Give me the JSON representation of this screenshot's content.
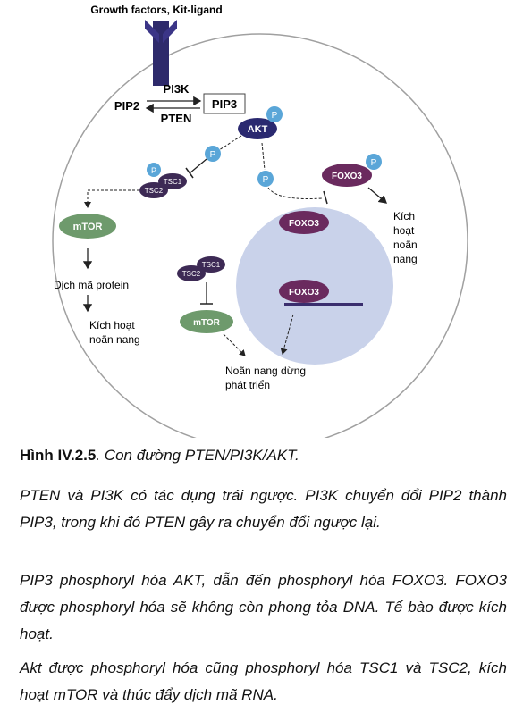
{
  "diagram": {
    "receptor_label": "Growth factors, Kit-ligand",
    "pi3k": "PI3K",
    "pip2": "PIP2",
    "pip3": "PIP3",
    "pten": "PTEN",
    "akt": "AKT",
    "p": "P",
    "tsc1": "TSC1",
    "tsc2": "TSC2",
    "mtor": "mTOR",
    "foxo3": "FOXO3",
    "kich_hoat_noan_nang_right": [
      "Kích",
      "hoạt",
      "noãn",
      "nang"
    ],
    "dich_ma_protein": "Dịch mã protein",
    "kich_hoat_noan_nang_left": [
      "Kích hoạt",
      "noãn nang"
    ],
    "noan_nang_dung": [
      "Noãn nang dừng",
      "phát triển"
    ]
  },
  "caption": {
    "label": "Hình IV.2.5",
    "text": ". Con đường PTEN/PI3K/AKT."
  },
  "paragraphs": [
    "PTEN và PI3K có tác dụng trái ngược. PI3K chuyển đổi PIP2 thành PIP3, trong khi đó PTEN gây ra chuyển đổi ngược lại.",
    "PIP3 phosphoryl hóa AKT, dẫn đến phosphoryl hóa FOXO3. FOXO3 được phosphoryl hóa sẽ không còn phong tỏa DNA. Tế bào được kích hoạt.",
    "Akt được phosphoryl hóa cũng phosphoryl hóa TSC1 và TSC2, kích hoạt mTOR và thúc đẩy dịch mã RNA."
  ]
}
